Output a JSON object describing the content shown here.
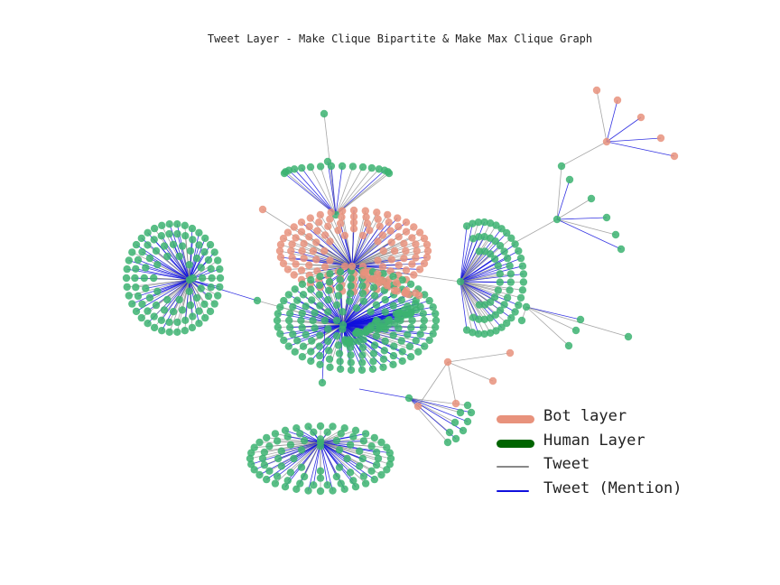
{
  "title": "Tweet Layer - Make Clique Bipartite & Make Max Clique Graph",
  "colors": {
    "bot": "#e8927c",
    "human": "#3cb371",
    "human_legend": "#006400",
    "tweet": "#888888",
    "mention": "#1010dd"
  },
  "legend": [
    {
      "label": "Bot layer",
      "color": "#e8927c",
      "kind": "thick-line"
    },
    {
      "label": "Human Layer",
      "color": "#006400",
      "kind": "thick-line"
    },
    {
      "label": "Tweet",
      "color": "#888888",
      "kind": "line"
    },
    {
      "label": "Tweet (Mention)",
      "color": "#1010dd",
      "kind": "line"
    }
  ],
  "graph": {
    "node_types": [
      "bot",
      "human"
    ],
    "edge_types": [
      "tweet",
      "mention"
    ],
    "clusters": [
      {
        "id": "left-fan",
        "hub": "human",
        "leaves": "human",
        "leaf_count": 95
      },
      {
        "id": "bottom-fan",
        "hub": "human",
        "leaves": "human",
        "leaf_count": 80
      },
      {
        "id": "right-fan",
        "hub": "human",
        "leaves": "human",
        "leaf_count": 60
      },
      {
        "id": "top-fan",
        "hub": "human",
        "leaves": "human",
        "leaf_count": 20
      },
      {
        "id": "top-right-small",
        "hub": "bot",
        "leaves": "bot",
        "leaf_count": 5
      },
      {
        "id": "right-small",
        "hub": "human",
        "leaves": "human",
        "leaf_count": 6
      },
      {
        "id": "lower-small",
        "hub": "human",
        "leaves": "human",
        "leaf_count": 8
      },
      {
        "id": "lower-bot-small",
        "hub": "bot",
        "leaves": "bot",
        "leaf_count": 3
      },
      {
        "id": "central-core",
        "hub": "bot",
        "leaves": "mixed",
        "leaf_count": 260
      }
    ]
  }
}
